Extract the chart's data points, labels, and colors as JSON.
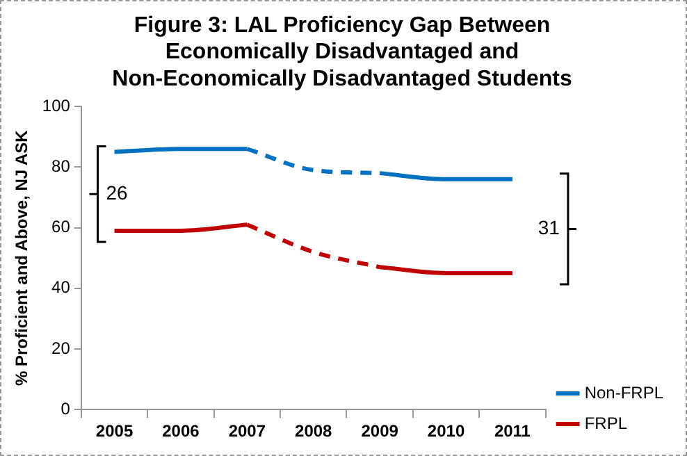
{
  "chart_data": {
    "type": "line",
    "title": "Figure 3: LAL Proficiency Gap Between Economically Disadvantaged and Non-Economically Disadvantaged Students",
    "ylabel": "% Proficient and Above, NJ ASK",
    "categories": [
      "2005",
      "2006",
      "2007",
      "2008",
      "2009",
      "2010",
      "2011"
    ],
    "series": [
      {
        "name": "Non-FRPL",
        "color": "#0070c0",
        "line_style": "solid",
        "values": [
          85,
          86,
          86,
          null,
          null,
          null,
          null
        ]
      },
      {
        "color": "#0070c0",
        "line_style": "dashed",
        "values": [
          null,
          null,
          86,
          79,
          78,
          null,
          null
        ]
      },
      {
        "color": "#0070c0",
        "line_style": "solid",
        "values": [
          null,
          null,
          null,
          null,
          78,
          76,
          76
        ]
      },
      {
        "name": "FRPL",
        "color": "#c00000",
        "line_style": "solid",
        "values": [
          59,
          59,
          61,
          null,
          null,
          null,
          null
        ]
      },
      {
        "color": "#c00000",
        "line_style": "dashed",
        "values": [
          null,
          null,
          61,
          52,
          47,
          null,
          null
        ]
      },
      {
        "color": "#c00000",
        "line_style": "solid",
        "values": [
          null,
          null,
          null,
          null,
          47,
          45,
          45
        ]
      }
    ],
    "ylim": [
      0,
      100
    ],
    "yticks": [
      0,
      20,
      40,
      60,
      80,
      100
    ],
    "grid": false,
    "legend": "right",
    "marker": "none",
    "annotations": [
      "26",
      "31"
    ]
  }
}
